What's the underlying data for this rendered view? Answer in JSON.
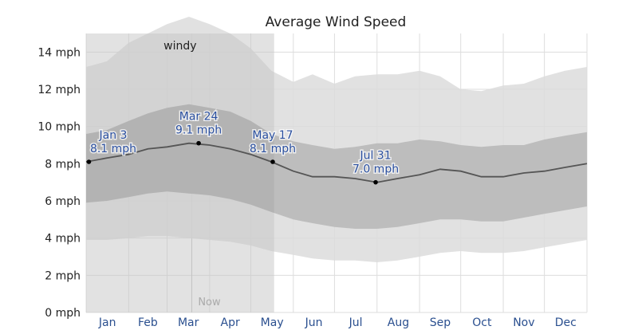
{
  "chart_data": {
    "type": "area",
    "title": "Average Wind Speed",
    "ylim": [
      0,
      15
    ],
    "y_ticks": [
      0,
      2,
      4,
      6,
      8,
      10,
      12,
      14
    ],
    "y_tick_labels": [
      "0 mph",
      "2 mph",
      "4 mph",
      "6 mph",
      "8 mph",
      "10 mph",
      "12 mph",
      "14 mph"
    ],
    "months": [
      "Jan",
      "Feb",
      "Mar",
      "Apr",
      "May",
      "Jun",
      "Jul",
      "Aug",
      "Sep",
      "Oct",
      "Nov",
      "Dec"
    ],
    "season": {
      "label": "windy",
      "start_day": 0,
      "end_day": 137
    },
    "now": {
      "label": "Now",
      "day": 77
    },
    "days": [
      0,
      15,
      31,
      45,
      59,
      75,
      90,
      105,
      120,
      135,
      151,
      165,
      181,
      196,
      212,
      227,
      243,
      258,
      273,
      288,
      304,
      319,
      334,
      349,
      365
    ],
    "series": [
      {
        "key": "p90",
        "values": [
          13.2,
          13.5,
          14.5,
          15.0,
          15.5,
          15.9,
          15.5,
          15.0,
          14.2,
          13.0,
          12.4,
          12.8,
          12.3,
          12.7,
          12.8,
          12.8,
          13.0,
          12.7,
          12.0,
          11.9,
          12.2,
          12.3,
          12.7,
          13.0,
          13.2
        ]
      },
      {
        "key": "p75",
        "values": [
          9.6,
          9.8,
          10.3,
          10.7,
          11.0,
          11.2,
          11.0,
          10.8,
          10.3,
          9.6,
          9.2,
          9.0,
          8.8,
          8.9,
          9.1,
          9.1,
          9.3,
          9.2,
          9.0,
          8.9,
          9.0,
          9.0,
          9.3,
          9.5,
          9.7
        ]
      },
      {
        "key": "mean",
        "values": [
          8.1,
          8.3,
          8.5,
          8.8,
          8.9,
          9.1,
          9.0,
          8.8,
          8.5,
          8.1,
          7.6,
          7.3,
          7.3,
          7.2,
          7.0,
          7.2,
          7.4,
          7.7,
          7.6,
          7.3,
          7.3,
          7.5,
          7.6,
          7.8,
          8.0
        ]
      },
      {
        "key": "p25",
        "values": [
          5.9,
          6.0,
          6.2,
          6.4,
          6.5,
          6.4,
          6.3,
          6.1,
          5.8,
          5.4,
          5.0,
          4.8,
          4.6,
          4.5,
          4.5,
          4.6,
          4.8,
          5.0,
          5.0,
          4.9,
          4.9,
          5.1,
          5.3,
          5.5,
          5.7
        ]
      },
      {
        "key": "p10",
        "values": [
          3.9,
          3.9,
          4.0,
          4.1,
          4.1,
          4.0,
          3.9,
          3.8,
          3.6,
          3.3,
          3.1,
          2.9,
          2.8,
          2.8,
          2.7,
          2.8,
          3.0,
          3.2,
          3.3,
          3.2,
          3.2,
          3.3,
          3.5,
          3.7,
          3.9
        ]
      }
    ],
    "annotations": [
      {
        "date": "Jan 3",
        "value": "8.1 mph",
        "day": 2,
        "y": 8.1
      },
      {
        "date": "Mar 24",
        "value": "9.1 mph",
        "day": 82,
        "y": 9.1
      },
      {
        "date": "May 17",
        "value": "8.1 mph",
        "day": 136,
        "y": 8.1
      },
      {
        "date": "Jul 31",
        "value": "7.0 mph",
        "day": 211,
        "y": 7.0
      }
    ],
    "colors": {
      "band_outer": "#dcdcdc",
      "band_inner": "#b9b9b9",
      "season_overlay": "#000000",
      "mean_line": "#555555",
      "grid": "#dddddd",
      "anno_text": "#2a4f9f",
      "tick_text": "#2a4f8f"
    }
  }
}
